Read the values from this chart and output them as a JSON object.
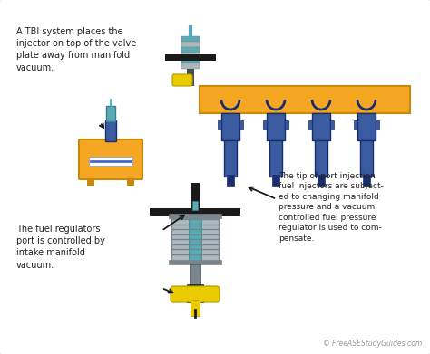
{
  "bg_color": "#f2f2f2",
  "border_color": "#999999",
  "orange": "#f5a623",
  "orange_edge": "#c8880a",
  "blue": "#3a5ba0",
  "dark_blue": "#1a2e6e",
  "teal": "#5aabb5",
  "teal_dark": "#3a8090",
  "gray_light": "#b0b8bc",
  "gray_mid": "#7a868c",
  "gray_dark": "#444c50",
  "yellow": "#e8cc00",
  "yellow_edge": "#b09800",
  "black": "#1a1a1a",
  "white": "#ffffff",
  "text_color": "#222222",
  "text1": "A TBI system places the\ninjector on top of the valve\nplate away from manifold\nvacuum.",
  "text2": "The tip of port injection\nfuel injectors are subject-\ned to changing manifold\npressure and a vacuum\ncontrolled fuel pressure\nregulator is used to com-\npensate.",
  "text3": "The fuel regulators\nport is controlled by\nintake manifold\nvacuum.",
  "watermark": "© FreeASEStudyGuides.com"
}
